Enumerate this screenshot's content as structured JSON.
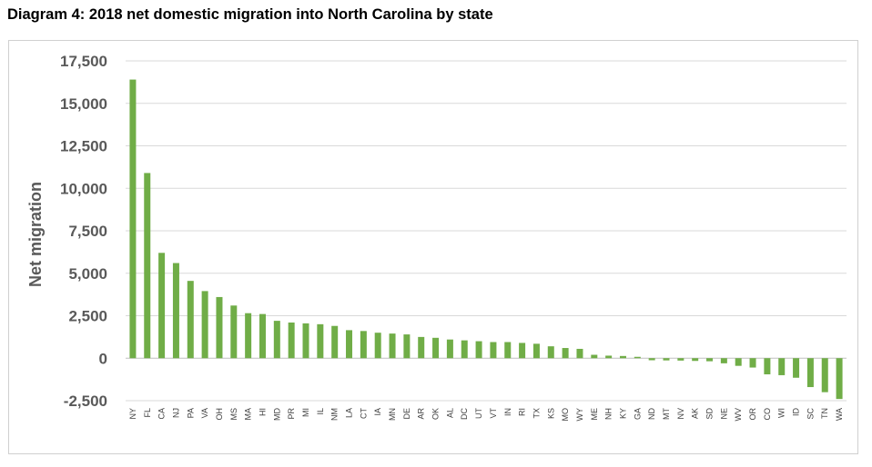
{
  "title": "Diagram 4: 2018 net domestic migration into North Carolina by state",
  "chart_data": {
    "type": "bar",
    "title": "Diagram 4: 2018 net domestic migration into North Carolina by state",
    "xlabel": "",
    "ylabel": "Net migration",
    "ylim": [
      -2500,
      17500
    ],
    "yticks": [
      -2500,
      0,
      2500,
      5000,
      7500,
      10000,
      12500,
      15000,
      17500
    ],
    "ytick_labels": [
      "-2,500",
      "0",
      "2,500",
      "5,000",
      "7,500",
      "10,000",
      "12,500",
      "15,000",
      "17,500"
    ],
    "grid": true,
    "bar_color": "#70ad47",
    "categories": [
      "NY",
      "FL",
      "CA",
      "NJ",
      "PA",
      "VA",
      "OH",
      "MS",
      "MA",
      "HI",
      "MD",
      "PR",
      "MI",
      "IL",
      "NM",
      "LA",
      "CT",
      "IA",
      "MN",
      "DE",
      "AR",
      "OK",
      "AL",
      "DC",
      "UT",
      "VT",
      "IN",
      "RI",
      "TX",
      "KS",
      "MO",
      "WY",
      "ME",
      "NH",
      "KY",
      "GA",
      "ND",
      "MT",
      "NV",
      "AK",
      "SD",
      "NE",
      "WV",
      "OR",
      "CO",
      "WI",
      "ID",
      "SC",
      "TN",
      "WA"
    ],
    "values": [
      16400,
      10900,
      6200,
      5600,
      4550,
      3950,
      3600,
      3100,
      2650,
      2600,
      2200,
      2100,
      2050,
      2000,
      1900,
      1650,
      1600,
      1500,
      1450,
      1400,
      1250,
      1200,
      1100,
      1050,
      1000,
      950,
      950,
      900,
      850,
      700,
      600,
      550,
      200,
      150,
      130,
      80,
      -120,
      -130,
      -140,
      -160,
      -180,
      -300,
      -450,
      -550,
      -950,
      -1000,
      -1150,
      -1700,
      -2000,
      -2400
    ]
  }
}
